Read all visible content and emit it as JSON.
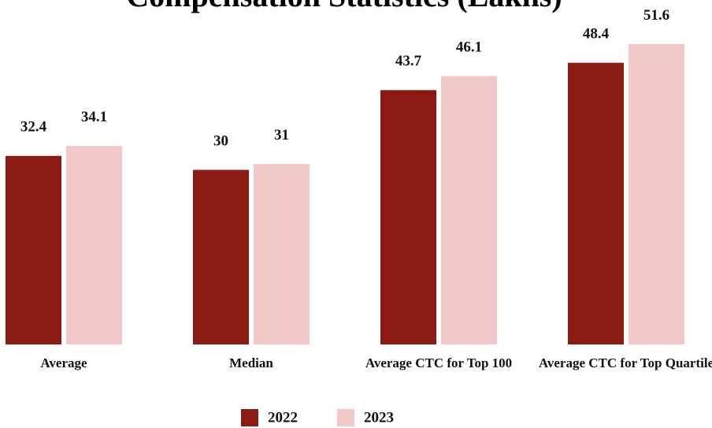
{
  "chart_data": {
    "type": "bar",
    "title": "Compensation Statistics (Lakhs)",
    "categories": [
      "Average",
      "Median",
      "Average CTC for Top 100",
      "Average CTC for Top Quartile"
    ],
    "series": [
      {
        "name": "2022",
        "color": "#8b1a12",
        "values": [
          32.4,
          30,
          43.7,
          48.4
        ]
      },
      {
        "name": "2023",
        "color": "#f0c8c8",
        "values": [
          34.1,
          31,
          46.1,
          51.6
        ]
      }
    ],
    "legend": "bottom"
  }
}
